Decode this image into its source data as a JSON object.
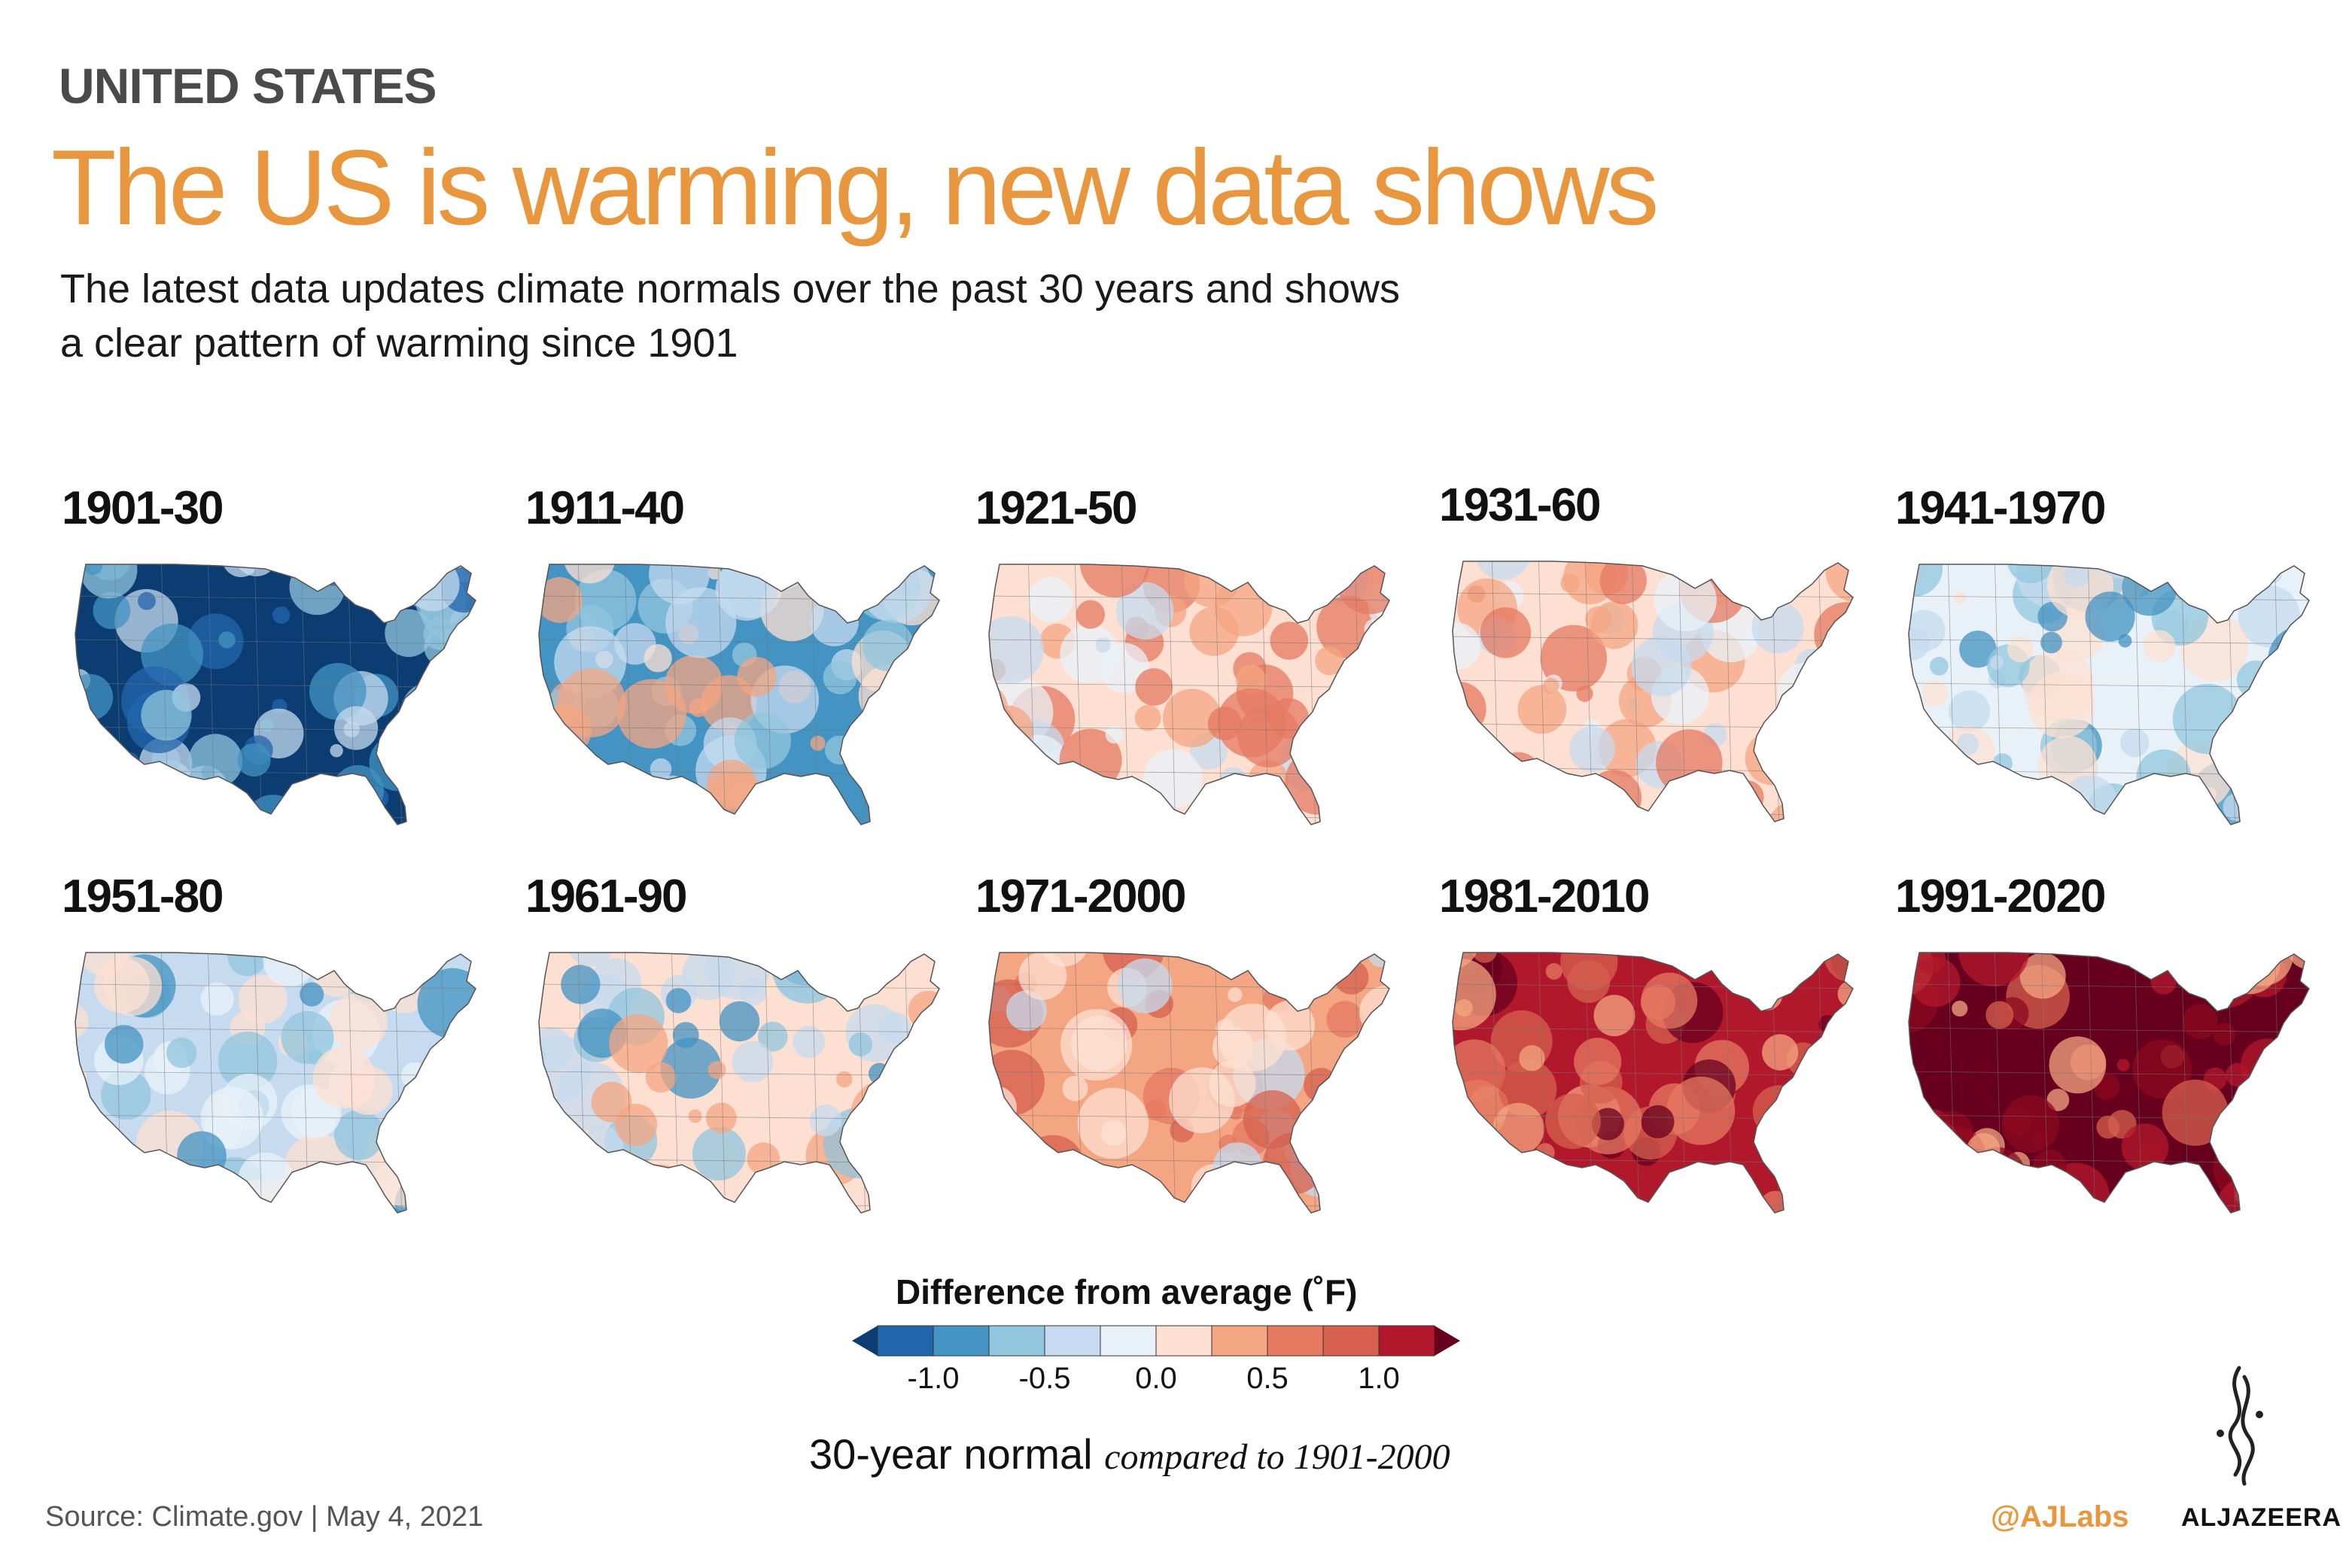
{
  "header": {
    "kicker": "UNITED STATES",
    "title": "The US is warming, new data shows",
    "subtitle_line1": "The latest data updates climate normals over the past 30 years and shows",
    "subtitle_line2": "a clear pattern of warming since 1901"
  },
  "chart_data": {
    "type": "heatmap",
    "title": "The US is warming, new data shows",
    "subtitle": "The latest data updates climate normals over the past 30 years and shows a clear pattern of warming since 1901",
    "panels": [
      {
        "label": "1901-30",
        "pattern": "cold"
      },
      {
        "label": "1911-40",
        "pattern": "cool-west-warm-southeast"
      },
      {
        "label": "1921-50",
        "pattern": "mild-warm"
      },
      {
        "label": "1931-60",
        "pattern": "mild-warm"
      },
      {
        "label": "1941-1970",
        "pattern": "near-normal-cool"
      },
      {
        "label": "1951-80",
        "pattern": "cool"
      },
      {
        "label": "1961-90",
        "pattern": "cool-east-warm-west"
      },
      {
        "label": "1971-2000",
        "pattern": "warm-west-cool-southeast"
      },
      {
        "label": "1981-2010",
        "pattern": "hot"
      },
      {
        "label": "1991-2020",
        "pattern": "very-hot"
      }
    ],
    "legend": {
      "title": "Difference from average (˚F)",
      "ticks": [
        "-1.0",
        "-0.5",
        "0.0",
        "0.5",
        "1.0"
      ],
      "bins": [
        "#2166ac",
        "#4393c3",
        "#92c5de",
        "#c6dbef",
        "#e8f1f8",
        "#fde0d2",
        "#f4a582",
        "#e57a61",
        "#d6604d",
        "#b2182b"
      ],
      "under_color": "#0b3d73",
      "over_color": "#67001f"
    },
    "caption_main": "30-year normal",
    "caption_italic": "compared to 1901-2000"
  },
  "footer": {
    "source": "Source: Climate.gov  |  May 4, 2021",
    "handle": "@AJLabs",
    "brand": "ALJAZEERA"
  }
}
